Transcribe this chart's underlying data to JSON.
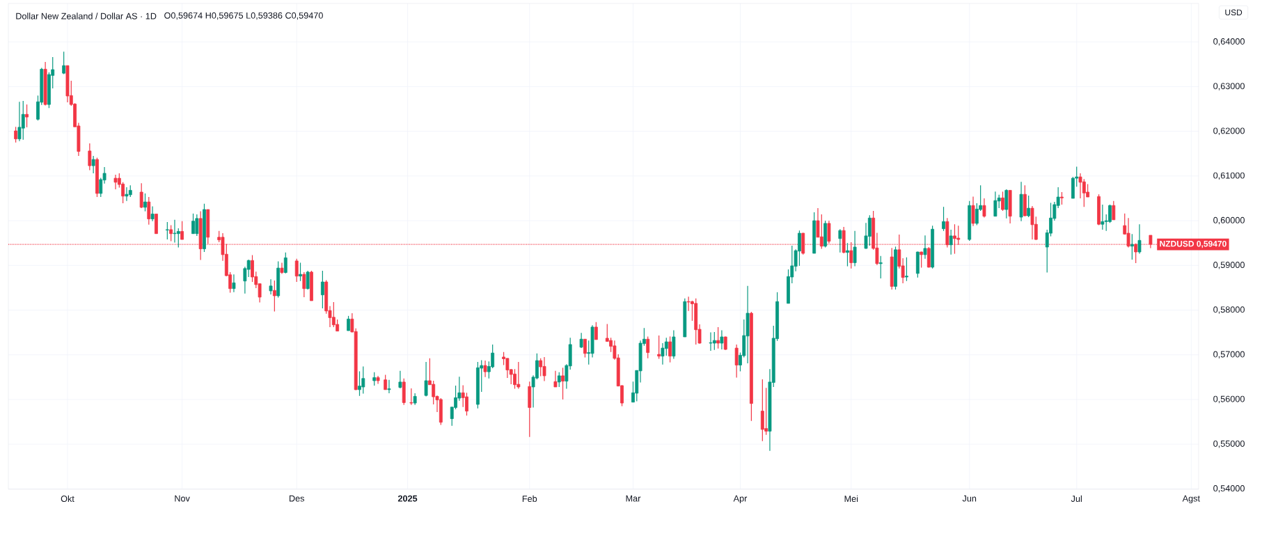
{
  "chart_data": {
    "type": "candlestick",
    "title": "Dollar New Zealand / Dollar AS · 1D",
    "subtitle": "O0,59674 H0,59675 L0,59386 C0,59470",
    "annotations": [
      "USD"
    ],
    "grid": true,
    "xlim": [
      "2024-09-15",
      "2025-08-03"
    ],
    "xticks": [
      {
        "value": "2024-10-01",
        "label": "Okt"
      },
      {
        "value": "2024-11-01",
        "label": "Nov"
      },
      {
        "value": "2024-12-02",
        "label": "Des"
      },
      {
        "value": "2025-01-01",
        "label": "2025"
      },
      {
        "value": "2025-02-03",
        "label": "Feb"
      },
      {
        "value": "2025-03-03",
        "label": "Mar"
      },
      {
        "value": "2025-04-01",
        "label": "Apr"
      },
      {
        "value": "2025-05-01",
        "label": "Mei"
      },
      {
        "value": "2025-06-02",
        "label": "Jun"
      },
      {
        "value": "2025-07-01",
        "label": "Jul"
      },
      {
        "value": "2025-08-01",
        "label": "Agst"
      }
    ],
    "ylim": [
      0.5399,
      0.6486
    ],
    "yticks": [
      {
        "value": 0.54,
        "label": "0,54000"
      },
      {
        "value": 0.55,
        "label": "0,55000"
      },
      {
        "value": 0.56,
        "label": "0,56000"
      },
      {
        "value": 0.57,
        "label": "0,57000"
      },
      {
        "value": 0.58,
        "label": "0,58000"
      },
      {
        "value": 0.59,
        "label": "0,59000"
      },
      {
        "value": 0.6,
        "label": "0,60000"
      },
      {
        "value": 0.61,
        "label": "0,61000"
      },
      {
        "value": 0.62,
        "label": "0,62000"
      },
      {
        "value": 0.63,
        "label": "0,63000"
      },
      {
        "value": 0.64,
        "label": "0,64000"
      }
    ],
    "ref_lines": [
      {
        "axis": "y",
        "value": 0.5947,
        "label": "NZDUSD 0,59470",
        "color": "#f23645",
        "line_style": "dotted"
      }
    ],
    "x": [
      "2024-09-17",
      "2024-09-18",
      "2024-09-19",
      "2024-09-20",
      "2024-09-23",
      "2024-09-24",
      "2024-09-25",
      "2024-09-26",
      "2024-09-27",
      "2024-09-30",
      "2024-10-01",
      "2024-10-02",
      "2024-10-03",
      "2024-10-04",
      "2024-10-07",
      "2024-10-08",
      "2024-10-09",
      "2024-10-10",
      "2024-10-11",
      "2024-10-14",
      "2024-10-15",
      "2024-10-16",
      "2024-10-17",
      "2024-10-18",
      "2024-10-21",
      "2024-10-22",
      "2024-10-23",
      "2024-10-24",
      "2024-10-25",
      "2024-10-28",
      "2024-10-29",
      "2024-10-30",
      "2024-10-31",
      "2024-11-01",
      "2024-11-04",
      "2024-11-05",
      "2024-11-06",
      "2024-11-07",
      "2024-11-08",
      "2024-11-11",
      "2024-11-12",
      "2024-11-13",
      "2024-11-14",
      "2024-11-15",
      "2024-11-18",
      "2024-11-19",
      "2024-11-20",
      "2024-11-21",
      "2024-11-22",
      "2024-11-25",
      "2024-11-26",
      "2024-11-27",
      "2024-11-28",
      "2024-11-29",
      "2024-12-02",
      "2024-12-03",
      "2024-12-04",
      "2024-12-05",
      "2024-12-06",
      "2024-12-09",
      "2024-12-10",
      "2024-12-11",
      "2024-12-12",
      "2024-12-13",
      "2024-12-16",
      "2024-12-17",
      "2024-12-18",
      "2024-12-19",
      "2024-12-20",
      "2024-12-23",
      "2024-12-24",
      "2024-12-26",
      "2024-12-27",
      "2024-12-30",
      "2024-12-31",
      "2025-01-02",
      "2025-01-03",
      "2025-01-06",
      "2025-01-07",
      "2025-01-08",
      "2025-01-09",
      "2025-01-10",
      "2025-01-13",
      "2025-01-14",
      "2025-01-15",
      "2025-01-16",
      "2025-01-17",
      "2025-01-20",
      "2025-01-21",
      "2025-01-22",
      "2025-01-23",
      "2025-01-24",
      "2025-01-27",
      "2025-01-28",
      "2025-01-29",
      "2025-01-30",
      "2025-01-31",
      "2025-02-03",
      "2025-02-04",
      "2025-02-05",
      "2025-02-06",
      "2025-02-07",
      "2025-02-10",
      "2025-02-11",
      "2025-02-12",
      "2025-02-13",
      "2025-02-14",
      "2025-02-17",
      "2025-02-18",
      "2025-02-19",
      "2025-02-20",
      "2025-02-21",
      "2025-02-24",
      "2025-02-25",
      "2025-02-26",
      "2025-02-27",
      "2025-02-28",
      "2025-03-03",
      "2025-03-04",
      "2025-03-05",
      "2025-03-06",
      "2025-03-07",
      "2025-03-10",
      "2025-03-11",
      "2025-03-12",
      "2025-03-13",
      "2025-03-14",
      "2025-03-17",
      "2025-03-18",
      "2025-03-19",
      "2025-03-20",
      "2025-03-21",
      "2025-03-24",
      "2025-03-25",
      "2025-03-26",
      "2025-03-27",
      "2025-03-28",
      "2025-03-31",
      "2025-04-01",
      "2025-04-02",
      "2025-04-03",
      "2025-04-04",
      "2025-04-07",
      "2025-04-08",
      "2025-04-09",
      "2025-04-10",
      "2025-04-11",
      "2025-04-14",
      "2025-04-15",
      "2025-04-16",
      "2025-04-17",
      "2025-04-18",
      "2025-04-21",
      "2025-04-22",
      "2025-04-23",
      "2025-04-24",
      "2025-04-25",
      "2025-04-28",
      "2025-04-29",
      "2025-04-30",
      "2025-05-01",
      "2025-05-02",
      "2025-05-05",
      "2025-05-06",
      "2025-05-07",
      "2025-05-08",
      "2025-05-09",
      "2025-05-12",
      "2025-05-13",
      "2025-05-14",
      "2025-05-15",
      "2025-05-16",
      "2025-05-19",
      "2025-05-20",
      "2025-05-21",
      "2025-05-22",
      "2025-05-23",
      "2025-05-26",
      "2025-05-27",
      "2025-05-28",
      "2025-05-29",
      "2025-05-30",
      "2025-06-02",
      "2025-06-03",
      "2025-06-04",
      "2025-06-05",
      "2025-06-06",
      "2025-06-09",
      "2025-06-10",
      "2025-06-11",
      "2025-06-12",
      "2025-06-13",
      "2025-06-16",
      "2025-06-17",
      "2025-06-18",
      "2025-06-19",
      "2025-06-20",
      "2025-06-23",
      "2025-06-24",
      "2025-06-25",
      "2025-06-26",
      "2025-06-27",
      "2025-06-30",
      "2025-07-01",
      "2025-07-02",
      "2025-07-03",
      "2025-07-04",
      "2025-07-07",
      "2025-07-08",
      "2025-07-09",
      "2025-07-10",
      "2025-07-11",
      "2025-07-14",
      "2025-07-15",
      "2025-07-16",
      "2025-07-17",
      "2025-07-18",
      "2025-07-21"
    ],
    "ohlc": [
      [
        0.6201,
        0.621,
        0.6175,
        0.6183
      ],
      [
        0.6183,
        0.6266,
        0.6178,
        0.6209
      ],
      [
        0.6207,
        0.6268,
        0.6181,
        0.6238
      ],
      [
        0.6238,
        0.626,
        0.6209,
        0.6232
      ],
      [
        0.6227,
        0.628,
        0.6224,
        0.6266
      ],
      [
        0.6265,
        0.6342,
        0.6259,
        0.6339
      ],
      [
        0.6339,
        0.6355,
        0.6258,
        0.626
      ],
      [
        0.626,
        0.6332,
        0.6252,
        0.6327
      ],
      [
        0.6325,
        0.6366,
        0.6296,
        0.6338
      ],
      [
        0.633,
        0.6378,
        0.6328,
        0.6347
      ],
      [
        0.6347,
        0.6347,
        0.6265,
        0.6279
      ],
      [
        0.628,
        0.6313,
        0.6257,
        0.626
      ],
      [
        0.6261,
        0.6263,
        0.621,
        0.621
      ],
      [
        0.6212,
        0.6219,
        0.6145,
        0.6155
      ],
      [
        0.6156,
        0.6173,
        0.6113,
        0.6123
      ],
      [
        0.6123,
        0.6145,
        0.6106,
        0.6137
      ],
      [
        0.6137,
        0.6141,
        0.6053,
        0.6061
      ],
      [
        0.6061,
        0.6096,
        0.6053,
        0.6092
      ],
      [
        0.6091,
        0.612,
        0.6083,
        0.6106
      ],
      [
        0.6095,
        0.6103,
        0.607,
        0.6086
      ],
      [
        0.6095,
        0.6106,
        0.6074,
        0.6081
      ],
      [
        0.6082,
        0.6086,
        0.6039,
        0.6055
      ],
      [
        0.6055,
        0.6075,
        0.6044,
        0.6059
      ],
      [
        0.6058,
        0.6079,
        0.6053,
        0.6068
      ],
      [
        0.6064,
        0.6084,
        0.6028,
        0.603
      ],
      [
        0.603,
        0.6061,
        0.6021,
        0.6042
      ],
      [
        0.6042,
        0.6053,
        0.5991,
        0.6004
      ],
      [
        0.6004,
        0.6032,
        0.5999,
        0.6015
      ],
      [
        0.6015,
        0.6015,
        0.5971,
        0.5971
      ],
      [
        0.5979,
        0.5997,
        0.5958,
        0.598
      ],
      [
        0.598,
        0.599,
        0.5954,
        0.5971
      ],
      [
        0.5971,
        0.6002,
        0.5951,
        0.5972
      ],
      [
        0.5971,
        0.5983,
        0.594,
        0.5976
      ],
      [
        0.5976,
        0.5999,
        0.5958,
        0.5958
      ],
      [
        0.5971,
        0.6016,
        0.5971,
        0.5999
      ],
      [
        0.5971,
        0.6014,
        0.5966,
        0.6005
      ],
      [
        0.6005,
        0.6021,
        0.5912,
        0.5937
      ],
      [
        0.5937,
        0.6038,
        0.593,
        0.6025
      ],
      [
        0.6025,
        0.6025,
        0.5948,
        0.5963
      ],
      [
        0.5963,
        0.5977,
        0.5952,
        0.5957
      ],
      [
        0.5963,
        0.5972,
        0.591,
        0.5924
      ],
      [
        0.5925,
        0.5948,
        0.5876,
        0.5877
      ],
      [
        0.5879,
        0.5885,
        0.5839,
        0.5848
      ],
      [
        0.5848,
        0.588,
        0.584,
        0.5861
      ],
      [
        0.5865,
        0.5897,
        0.5837,
        0.5893
      ],
      [
        0.5891,
        0.5913,
        0.5874,
        0.5911
      ],
      [
        0.5911,
        0.5923,
        0.5863,
        0.5874
      ],
      [
        0.5875,
        0.5886,
        0.5849,
        0.5857
      ],
      [
        0.5859,
        0.5859,
        0.5817,
        0.5829
      ],
      [
        0.5843,
        0.5869,
        0.5835,
        0.5854
      ],
      [
        0.5844,
        0.5866,
        0.5797,
        0.5832
      ],
      [
        0.5832,
        0.5909,
        0.5828,
        0.5894
      ],
      [
        0.5894,
        0.5906,
        0.5881,
        0.5884
      ],
      [
        0.5884,
        0.5929,
        0.5882,
        0.5917
      ],
      [
        0.591,
        0.5915,
        0.5863,
        0.5876
      ],
      [
        0.5876,
        0.5906,
        0.5865,
        0.588
      ],
      [
        0.588,
        0.5885,
        0.5829,
        0.5848
      ],
      [
        0.5848,
        0.5888,
        0.5846,
        0.5885
      ],
      [
        0.5885,
        0.5888,
        0.5821,
        0.5821
      ],
      [
        0.5834,
        0.5888,
        0.5804,
        0.5863
      ],
      [
        0.5863,
        0.5867,
        0.5792,
        0.5798
      ],
      [
        0.5799,
        0.5809,
        0.5762,
        0.5783
      ],
      [
        0.5784,
        0.5818,
        0.5762,
        0.5767
      ],
      [
        0.5768,
        0.5779,
        0.5753,
        0.5753
      ],
      [
        0.5754,
        0.5787,
        0.5754,
        0.578
      ],
      [
        0.578,
        0.5793,
        0.575,
        0.5751
      ],
      [
        0.5752,
        0.5759,
        0.5621,
        0.5622
      ],
      [
        0.5622,
        0.5663,
        0.5608,
        0.563
      ],
      [
        0.5628,
        0.5674,
        0.5613,
        0.5647
      ],
      [
        0.5642,
        0.5661,
        0.5631,
        0.5649
      ],
      [
        0.5649,
        0.5653,
        0.5635,
        0.5642
      ],
      [
        0.5644,
        0.5655,
        0.5622,
        0.5622
      ],
      [
        0.5622,
        0.5644,
        0.5614,
        0.5624
      ],
      [
        0.5627,
        0.5664,
        0.5625,
        0.5639
      ],
      [
        0.5639,
        0.5647,
        0.5588,
        0.5593
      ],
      [
        0.5593,
        0.5625,
        0.5588,
        0.5592
      ],
      [
        0.5592,
        0.5614,
        0.5588,
        0.5607
      ],
      [
        0.5609,
        0.5684,
        0.5607,
        0.5642
      ],
      [
        0.5642,
        0.5692,
        0.5633,
        0.5633
      ],
      [
        0.5634,
        0.5642,
        0.5589,
        0.5606
      ],
      [
        0.5607,
        0.5609,
        0.5572,
        0.5599
      ],
      [
        0.56,
        0.5603,
        0.5543,
        0.5549
      ],
      [
        0.5557,
        0.5583,
        0.5541,
        0.5583
      ],
      [
        0.5582,
        0.5631,
        0.5578,
        0.5604
      ],
      [
        0.5603,
        0.5651,
        0.5597,
        0.5615
      ],
      [
        0.5615,
        0.5632,
        0.5583,
        0.5604
      ],
      [
        0.5606,
        0.5615,
        0.5564,
        0.5574
      ],
      [
        0.5589,
        0.5684,
        0.558,
        0.5671
      ],
      [
        0.567,
        0.5688,
        0.5617,
        0.5676
      ],
      [
        0.5676,
        0.5687,
        0.565,
        0.5662
      ],
      [
        0.5662,
        0.5685,
        0.5647,
        0.5674
      ],
      [
        0.5673,
        0.5723,
        0.567,
        0.5704
      ],
      [
        0.5695,
        0.5706,
        0.5677,
        0.5691
      ],
      [
        0.5692,
        0.5692,
        0.5648,
        0.5666
      ],
      [
        0.5667,
        0.5668,
        0.5634,
        0.5656
      ],
      [
        0.5657,
        0.5668,
        0.5624,
        0.5633
      ],
      [
        0.5634,
        0.5684,
        0.5624,
        0.5628
      ],
      [
        0.5629,
        0.564,
        0.5516,
        0.5582
      ],
      [
        0.5628,
        0.5654,
        0.5582,
        0.565
      ],
      [
        0.5648,
        0.5703,
        0.5645,
        0.5687
      ],
      [
        0.5687,
        0.5692,
        0.5652,
        0.5673
      ],
      [
        0.5674,
        0.5695,
        0.5641,
        0.5653
      ],
      [
        0.564,
        0.5664,
        0.5628,
        0.5628
      ],
      [
        0.5639,
        0.5661,
        0.5628,
        0.5653
      ],
      [
        0.5653,
        0.5671,
        0.56,
        0.5641
      ],
      [
        0.5641,
        0.5679,
        0.5624,
        0.5676
      ],
      [
        0.5675,
        0.5738,
        0.5667,
        0.5723
      ],
      [
        0.5717,
        0.5749,
        0.5715,
        0.5735
      ],
      [
        0.5735,
        0.5735,
        0.5694,
        0.5703
      ],
      [
        0.5703,
        0.5732,
        0.5678,
        0.5705
      ],
      [
        0.5703,
        0.5766,
        0.5694,
        0.5762
      ],
      [
        0.5762,
        0.5773,
        0.5734,
        0.5734
      ],
      [
        0.5737,
        0.5769,
        0.5729,
        0.573
      ],
      [
        0.5732,
        0.5738,
        0.5706,
        0.5719
      ],
      [
        0.572,
        0.5732,
        0.5689,
        0.5692
      ],
      [
        0.5693,
        0.5701,
        0.563,
        0.563
      ],
      [
        0.5631,
        0.5632,
        0.5585,
        0.5592
      ],
      [
        0.5594,
        0.564,
        0.5594,
        0.5615
      ],
      [
        0.5614,
        0.5665,
        0.5596,
        0.5665
      ],
      [
        0.5664,
        0.5732,
        0.5638,
        0.5726
      ],
      [
        0.5725,
        0.576,
        0.572,
        0.5735
      ],
      [
        0.5735,
        0.5741,
        0.5692,
        0.5705
      ],
      [
        0.5701,
        0.5743,
        0.5691,
        0.5697
      ],
      [
        0.5697,
        0.5726,
        0.5678,
        0.5715
      ],
      [
        0.5714,
        0.5738,
        0.5698,
        0.5729
      ],
      [
        0.5729,
        0.5741,
        0.5683,
        0.5697
      ],
      [
        0.5697,
        0.5755,
        0.5691,
        0.574
      ],
      [
        0.574,
        0.5826,
        0.574,
        0.5819
      ],
      [
        0.5819,
        0.583,
        0.5798,
        0.5818
      ],
      [
        0.5819,
        0.5821,
        0.5776,
        0.5814
      ],
      [
        0.5815,
        0.5826,
        0.5723,
        0.5756
      ],
      [
        0.5757,
        0.5768,
        0.5725,
        0.5726
      ],
      [
        0.5726,
        0.575,
        0.5709,
        0.5727
      ],
      [
        0.5726,
        0.5751,
        0.5711,
        0.5732
      ],
      [
        0.5732,
        0.5762,
        0.5714,
        0.5726
      ],
      [
        0.5726,
        0.5755,
        0.5712,
        0.574
      ],
      [
        0.574,
        0.5741,
        0.5711,
        0.5712
      ],
      [
        0.5715,
        0.5723,
        0.5649,
        0.5677
      ],
      [
        0.5677,
        0.5705,
        0.5663,
        0.5699
      ],
      [
        0.5698,
        0.5779,
        0.5694,
        0.5743
      ],
      [
        0.5742,
        0.5854,
        0.5681,
        0.5793
      ],
      [
        0.5793,
        0.5796,
        0.5552,
        0.5591
      ],
      [
        0.5574,
        0.5645,
        0.5507,
        0.5533
      ],
      [
        0.5535,
        0.5626,
        0.5521,
        0.5529
      ],
      [
        0.5529,
        0.5668,
        0.5485,
        0.5639
      ],
      [
        0.5638,
        0.5765,
        0.5628,
        0.5737
      ],
      [
        0.5736,
        0.584,
        0.5731,
        0.5819
      ],
      [
        0.5815,
        0.5891,
        0.5815,
        0.5875
      ],
      [
        0.5874,
        0.5944,
        0.586,
        0.5899
      ],
      [
        0.5898,
        0.5936,
        0.5887,
        0.5933
      ],
      [
        0.5932,
        0.5978,
        0.5899,
        0.5972
      ],
      [
        0.5972,
        0.5973,
        0.5924,
        0.5927
      ],
      [
        0.5927,
        0.6019,
        0.5927,
        0.6
      ],
      [
        0.6,
        0.6028,
        0.5963,
        0.5963
      ],
      [
        0.5964,
        0.6014,
        0.5937,
        0.5943
      ],
      [
        0.5943,
        0.6,
        0.594,
        0.5994
      ],
      [
        0.5994,
        0.6,
        0.5949,
        0.5954
      ],
      [
        0.596,
        0.5981,
        0.5929,
        0.5978
      ],
      [
        0.5978,
        0.5986,
        0.5927,
        0.5929
      ],
      [
        0.5929,
        0.595,
        0.5898,
        0.5933
      ],
      [
        0.5933,
        0.5952,
        0.5893,
        0.5906
      ],
      [
        0.5906,
        0.5977,
        0.5898,
        0.5941
      ],
      [
        0.5938,
        0.5995,
        0.5937,
        0.5966
      ],
      [
        0.5965,
        0.6012,
        0.5944,
        0.6006
      ],
      [
        0.6006,
        0.6022,
        0.5935,
        0.5938
      ],
      [
        0.5939,
        0.5973,
        0.5901,
        0.5904
      ],
      [
        0.5904,
        0.5921,
        0.5871,
        0.5906
      ],
      [
        0.5919,
        0.5939,
        0.5846,
        0.5853
      ],
      [
        0.5853,
        0.5942,
        0.5846,
        0.5935
      ],
      [
        0.5935,
        0.5969,
        0.5893,
        0.5898
      ],
      [
        0.5899,
        0.5916,
        0.586,
        0.5873
      ],
      [
        0.5874,
        0.5918,
        0.5865,
        0.5876
      ],
      [
        0.5882,
        0.5931,
        0.5873,
        0.593
      ],
      [
        0.593,
        0.5931,
        0.5895,
        0.5924
      ],
      [
        0.5924,
        0.5967,
        0.5915,
        0.5938
      ],
      [
        0.5938,
        0.5941,
        0.5895,
        0.5896
      ],
      [
        0.5896,
        0.5989,
        0.5893,
        0.5981
      ],
      [
        0.5982,
        0.6031,
        0.5977,
        0.5998
      ],
      [
        0.5998,
        0.6006,
        0.594,
        0.5946
      ],
      [
        0.5946,
        0.598,
        0.5924,
        0.5966
      ],
      [
        0.5966,
        0.5992,
        0.5926,
        0.596
      ],
      [
        0.5961,
        0.5989,
        0.5946,
        0.5958
      ],
      [
        0.5958,
        0.6044,
        0.5955,
        0.6034
      ],
      [
        0.6034,
        0.6054,
        0.5988,
        0.5994
      ],
      [
        0.5994,
        0.6039,
        0.599,
        0.6026
      ],
      [
        0.6025,
        0.6079,
        0.6022,
        0.6034
      ],
      [
        0.6034,
        0.605,
        0.6007,
        0.601
      ],
      [
        0.601,
        0.6065,
        0.601,
        0.6045
      ],
      [
        0.6044,
        0.6058,
        0.6028,
        0.6051
      ],
      [
        0.6051,
        0.6065,
        0.6022,
        0.6025
      ],
      [
        0.6025,
        0.607,
        0.6005,
        0.6068
      ],
      [
        0.6068,
        0.6068,
        0.5994,
        0.601
      ],
      [
        0.6008,
        0.6087,
        0.5999,
        0.6059
      ],
      [
        0.6059,
        0.6079,
        0.601,
        0.6011
      ],
      [
        0.6011,
        0.6056,
        0.6008,
        0.6028
      ],
      [
        0.6028,
        0.6033,
        0.5958,
        0.5991
      ],
      [
        0.5992,
        0.6009,
        0.5957,
        0.5958
      ],
      [
        0.5941,
        0.598,
        0.5884,
        0.5973
      ],
      [
        0.5972,
        0.604,
        0.5965,
        0.6006
      ],
      [
        0.6005,
        0.6042,
        0.6,
        0.6036
      ],
      [
        0.6034,
        0.6075,
        0.6028,
        0.6053
      ],
      [
        0.6053,
        0.6064,
        0.6036,
        0.6051
      ],
      [
        0.605,
        0.6098,
        0.605,
        0.6095
      ],
      [
        0.6095,
        0.6121,
        0.6076,
        0.6098
      ],
      [
        0.6098,
        0.6106,
        0.605,
        0.6086
      ],
      [
        0.6087,
        0.6093,
        0.6031,
        0.6062
      ],
      [
        0.6064,
        0.6082,
        0.6053,
        0.6053
      ],
      [
        0.6054,
        0.6059,
        0.599,
        0.5992
      ],
      [
        0.5992,
        0.6036,
        0.598,
        0.5998
      ],
      [
        0.5998,
        0.6014,
        0.5977,
        0.6
      ],
      [
        0.5998,
        0.6036,
        0.5995,
        0.6034
      ],
      [
        0.6034,
        0.6044,
        0.6002,
        0.6002
      ],
      [
        0.5989,
        0.6016,
        0.5969,
        0.597
      ],
      [
        0.5972,
        0.6006,
        0.594,
        0.5943
      ],
      [
        0.5943,
        0.597,
        0.5913,
        0.5947
      ],
      [
        0.5947,
        0.5949,
        0.5905,
        0.593
      ],
      [
        0.593,
        0.5992,
        0.5926,
        0.5956
      ],
      [
        0.59674,
        0.59675,
        0.59386,
        0.5947
      ]
    ],
    "colors": [
      "#f23645",
      "#089981",
      "#089981",
      "#f23645",
      "#089981",
      "#089981",
      "#f23645",
      "#089981",
      "#089981",
      "#089981",
      "#f23645",
      "#f23645",
      "#f23645",
      "#f23645",
      "#f23645",
      "#089981",
      "#f23645",
      "#089981",
      "#089981",
      "#f23645",
      "#f23645",
      "#f23645",
      "#089981",
      "#089981",
      "#f23645",
      "#089981",
      "#f23645",
      "#089981",
      "#f23645",
      "#089981",
      "#f23645",
      "#089981",
      "#089981",
      "#f23645",
      "#089981",
      "#089981",
      "#f23645",
      "#089981",
      "#f23645",
      "#f23645",
      "#f23645",
      "#f23645",
      "#f23645",
      "#089981",
      "#089981",
      "#089981",
      "#f23645",
      "#f23645",
      "#f23645",
      "#089981",
      "#f23645",
      "#089981",
      "#f23645",
      "#089981",
      "#f23645",
      "#089981",
      "#f23645",
      "#089981",
      "#f23645",
      "#089981",
      "#f23645",
      "#f23645",
      "#f23645",
      "#f23645",
      "#089981",
      "#f23645",
      "#f23645",
      "#089981",
      "#089981",
      "#089981",
      "#f23645",
      "#f23645",
      "#089981",
      "#089981",
      "#f23645",
      "#f23645",
      "#089981",
      "#089981",
      "#f23645",
      "#f23645",
      "#f23645",
      "#f23645",
      "#089981",
      "#089981",
      "#089981",
      "#f23645",
      "#f23645",
      "#089981",
      "#089981",
      "#f23645",
      "#089981",
      "#089981",
      "#f23645",
      "#f23645",
      "#f23645",
      "#f23645",
      "#f23645",
      "#f23645",
      "#089981",
      "#089981",
      "#f23645",
      "#f23645",
      "#f23645",
      "#089981",
      "#f23645",
      "#089981",
      "#089981",
      "#089981",
      "#f23645",
      "#089981",
      "#089981",
      "#f23645",
      "#f23645",
      "#f23645",
      "#f23645",
      "#f23645",
      "#f23645",
      "#089981",
      "#089981",
      "#089981",
      "#089981",
      "#f23645",
      "#f23645",
      "#089981",
      "#089981",
      "#f23645",
      "#089981",
      "#089981",
      "#f23645",
      "#f23645",
      "#f23645",
      "#f23645",
      "#089981",
      "#089981",
      "#f23645",
      "#089981",
      "#f23645",
      "#f23645",
      "#089981",
      "#089981",
      "#089981",
      "#f23645",
      "#f23645",
      "#f23645",
      "#089981",
      "#089981",
      "#089981",
      "#089981",
      "#089981",
      "#089981",
      "#089981",
      "#f23645",
      "#089981",
      "#f23645",
      "#f23645",
      "#089981",
      "#f23645",
      "#089981",
      "#f23645",
      "#089981",
      "#f23645",
      "#089981",
      "#089981",
      "#089981",
      "#f23645",
      "#f23645",
      "#089981",
      "#f23645",
      "#089981",
      "#f23645",
      "#f23645",
      "#089981",
      "#089981",
      "#f23645",
      "#089981",
      "#f23645",
      "#089981",
      "#089981",
      "#f23645",
      "#089981",
      "#f23645",
      "#f23645",
      "#089981",
      "#f23645",
      "#089981",
      "#089981",
      "#f23645",
      "#089981",
      "#089981",
      "#f23645",
      "#089981",
      "#f23645",
      "#089981",
      "#f23645",
      "#089981",
      "#f23645",
      "#f23645",
      "#089981",
      "#089981",
      "#089981",
      "#089981",
      "#f23645",
      "#089981",
      "#089981",
      "#f23645",
      "#f23645",
      "#f23645",
      "#f23645",
      "#089981",
      "#089981",
      "#089981",
      "#f23645",
      "#f23645",
      "#f23645",
      "#089981",
      "#f23645",
      "#089981",
      "#f23645"
    ]
  }
}
